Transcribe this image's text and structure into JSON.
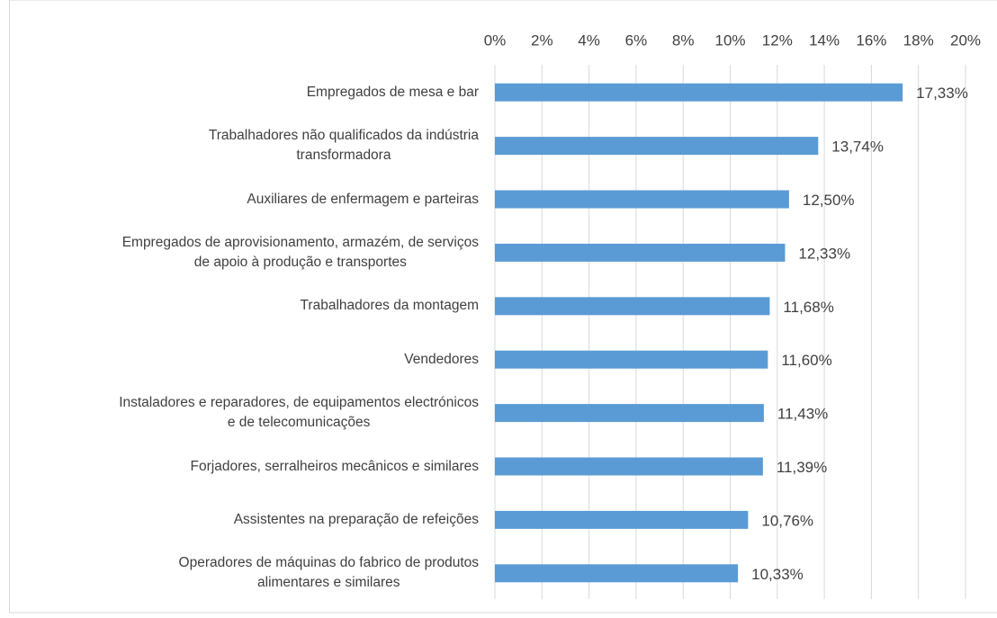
{
  "chart_data": {
    "type": "bar",
    "orientation": "horizontal",
    "categories": [
      "Empregados de mesa e bar",
      "Trabalhadores não qualificados da indústria\ntransformadora",
      "Auxiliares de enfermagem e parteiras",
      "Empregados de aprovisionamento, armazém, de serviços\nde apoio à produção e transportes",
      "Trabalhadores da montagem",
      "Vendedores",
      "Instaladores e reparadores, de equipamentos electrónicos\ne de telecomunicações",
      "Forjadores, serralheiros mecânicos e similares",
      "Assistentes na preparação de refeições",
      "Operadores de máquinas do fabrico de produtos\nalimentares e similares"
    ],
    "values": [
      17.33,
      13.74,
      12.5,
      12.33,
      11.68,
      11.6,
      11.43,
      11.39,
      10.76,
      10.33
    ],
    "value_labels": [
      "17,33%",
      "13,74%",
      "12,50%",
      "12,33%",
      "11,68%",
      "11,60%",
      "11,43%",
      "11,39%",
      "10,76%",
      "10,33%"
    ],
    "color": "#5b9bd5",
    "xlim": [
      0,
      20
    ],
    "xticks": [
      {
        "value": 0,
        "label": "0%"
      },
      {
        "value": 2,
        "label": "2%"
      },
      {
        "value": 4,
        "label": "4%"
      },
      {
        "value": 6,
        "label": "6%"
      },
      {
        "value": 8,
        "label": "8%"
      },
      {
        "value": 10,
        "label": "10%"
      },
      {
        "value": 12,
        "label": "12%"
      },
      {
        "value": 14,
        "label": "14%"
      },
      {
        "value": 16,
        "label": "16%"
      },
      {
        "value": 18,
        "label": "18%"
      },
      {
        "value": 20,
        "label": "20%"
      }
    ],
    "grid": true
  }
}
